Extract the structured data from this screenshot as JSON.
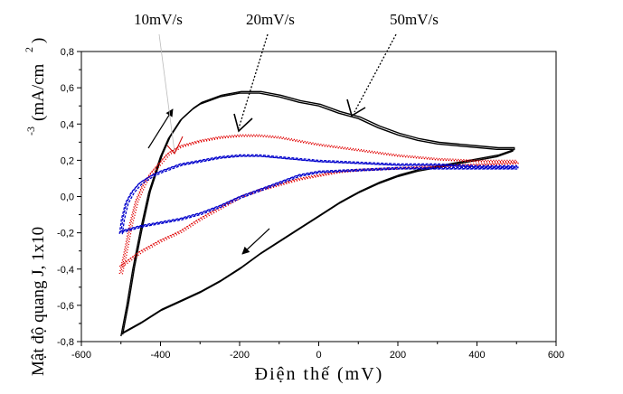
{
  "chart_data": {
    "type": "line",
    "title": "",
    "xlabel": "Điện thế (mV)",
    "ylabel": "Mật độ quang J, 1x10",
    "ylabel_exponent": "-3",
    "ylabel_unit": "(mA/cm",
    "ylabel_unit_exponent": "2",
    "ylabel_close": ")",
    "xlim": [
      -600,
      600
    ],
    "ylim": [
      -0.8,
      0.8
    ],
    "x_ticks": [
      -600,
      -400,
      -200,
      0,
      200,
      400,
      600
    ],
    "x_tick_labels": [
      "-600",
      "-400",
      "-200",
      "0",
      "200",
      "400",
      "600"
    ],
    "y_ticks": [
      -0.8,
      -0.6,
      -0.4,
      -0.2,
      0.0,
      0.2,
      0.4,
      0.6,
      0.8
    ],
    "y_tick_labels": [
      "-0,8",
      "-0,6",
      "-0,4",
      "-0,2",
      "0,0",
      "0,2",
      "0,4",
      "0,6",
      "0,8"
    ],
    "grid": false,
    "colors": {
      "black": "#000000",
      "red": "#e00000",
      "blue": "#0000cc"
    },
    "series": [
      {
        "color": "black",
        "style": "solid",
        "x": [
          -500,
          -485,
          -470,
          -450,
          -430,
          -400,
          -380,
          -350,
          -320,
          -300,
          -250,
          -200,
          -150,
          -100,
          -50,
          0,
          50,
          100,
          150,
          200,
          250,
          300,
          350,
          400,
          450,
          490,
          490,
          450,
          400,
          350,
          300,
          250,
          200,
          150,
          100,
          50,
          0,
          -50,
          -100,
          -150,
          -200,
          -250,
          -300,
          -350,
          -400,
          -450,
          -500
        ],
        "y": [
          -0.77,
          -0.6,
          -0.4,
          -0.18,
          0.02,
          0.22,
          0.32,
          0.42,
          0.48,
          0.51,
          0.55,
          0.57,
          0.57,
          0.55,
          0.52,
          0.5,
          0.46,
          0.43,
          0.38,
          0.34,
          0.31,
          0.29,
          0.28,
          0.27,
          0.26,
          0.26,
          0.25,
          0.22,
          0.2,
          0.18,
          0.16,
          0.14,
          0.11,
          0.07,
          0.02,
          -0.04,
          -0.11,
          -0.18,
          -0.25,
          -0.32,
          -0.4,
          -0.47,
          -0.53,
          -0.58,
          -0.63,
          -0.7,
          -0.76
        ]
      },
      {
        "color": "red",
        "style": "dotted",
        "x": [
          -500,
          -490,
          -475,
          -460,
          -440,
          -420,
          -400,
          -380,
          -350,
          -300,
          -250,
          -200,
          -150,
          -100,
          -50,
          0,
          100,
          200,
          300,
          400,
          500,
          500,
          400,
          300,
          200,
          100,
          50,
          0,
          -50,
          -100,
          -150,
          -200,
          -250,
          -300,
          -350,
          -400,
          -450,
          -500
        ],
        "y": [
          -0.42,
          -0.32,
          -0.15,
          -0.02,
          0.08,
          0.14,
          0.19,
          0.24,
          0.28,
          0.31,
          0.33,
          0.34,
          0.34,
          0.33,
          0.31,
          0.29,
          0.26,
          0.23,
          0.21,
          0.2,
          0.2,
          0.19,
          0.18,
          0.17,
          0.16,
          0.15,
          0.14,
          0.12,
          0.1,
          0.07,
          0.04,
          0.0,
          -0.06,
          -0.12,
          -0.19,
          -0.24,
          -0.3,
          -0.38
        ]
      },
      {
        "color": "blue",
        "style": "dashed",
        "x": [
          -500,
          -495,
          -485,
          -470,
          -450,
          -420,
          -400,
          -350,
          -300,
          -250,
          -200,
          -150,
          -100,
          -50,
          0,
          100,
          200,
          300,
          400,
          500,
          500,
          400,
          300,
          200,
          100,
          0,
          -50,
          -100,
          -150,
          -200,
          -250,
          -300,
          -350,
          -400,
          -450,
          -500
        ],
        "y": [
          -0.2,
          -0.12,
          -0.03,
          0.03,
          0.08,
          0.12,
          0.14,
          0.18,
          0.2,
          0.22,
          0.23,
          0.23,
          0.22,
          0.21,
          0.2,
          0.19,
          0.18,
          0.18,
          0.17,
          0.17,
          0.16,
          0.16,
          0.16,
          0.16,
          0.15,
          0.14,
          0.12,
          0.08,
          0.04,
          0.0,
          -0.05,
          -0.09,
          -0.12,
          -0.14,
          -0.16,
          -0.19
        ]
      }
    ],
    "annotations": [
      {
        "text": "10mV/s",
        "tx": -420,
        "ty": 1.0
      },
      {
        "text": "20mV/s",
        "tx": -170,
        "ty": 1.0
      },
      {
        "text": "50mV/s",
        "tx": 130,
        "ty": 1.0
      }
    ]
  }
}
